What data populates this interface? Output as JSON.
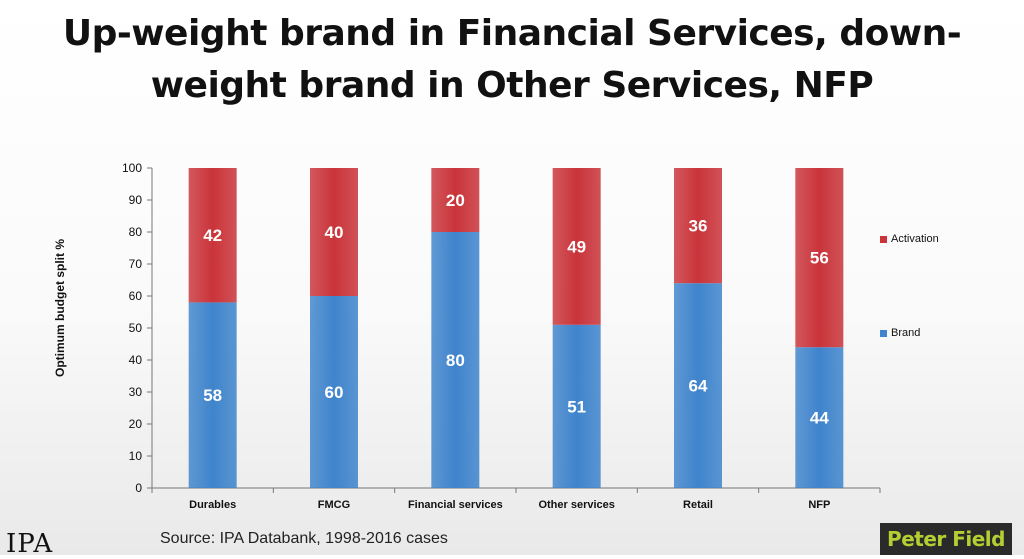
{
  "chart_data": {
    "type": "bar",
    "stacked": true,
    "title_lines": [
      "Up-weight brand in Financial Services, down-",
      "weight brand in Other Services, NFP"
    ],
    "ylabel": "Optimum budget split %",
    "xlabel": "",
    "ylim": [
      0,
      100
    ],
    "yticks": [
      0,
      10,
      20,
      30,
      40,
      50,
      60,
      70,
      80,
      90,
      100
    ],
    "categories": [
      "Durables",
      "FMCG",
      "Financial services",
      "Other services",
      "Retail",
      "NFP"
    ],
    "series": [
      {
        "name": "Brand",
        "color": "#3f84cc",
        "values": [
          58,
          60,
          80,
          51,
          64,
          44
        ]
      },
      {
        "name": "Activation",
        "color": "#c9343a",
        "values": [
          42,
          40,
          20,
          49,
          36,
          56
        ]
      }
    ],
    "legend": {
      "placement": "right",
      "order": [
        "Activation",
        "Brand"
      ]
    },
    "grid": false
  },
  "footer": {
    "source": "Source: IPA Databank, 1998-2016 cases",
    "logo_left": "IPA",
    "badge_right": "Peter Field"
  }
}
